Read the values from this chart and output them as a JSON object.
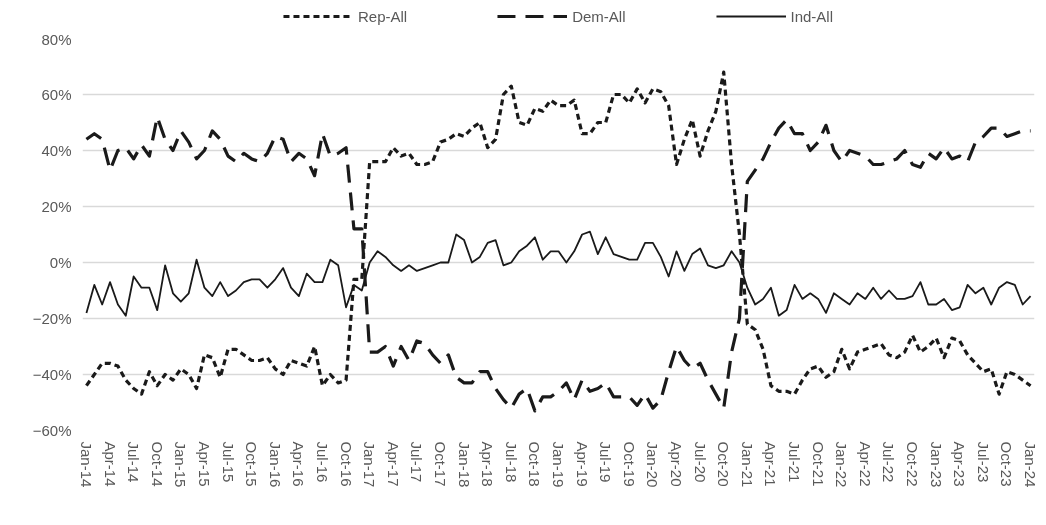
{
  "chart_data": {
    "type": "line",
    "categories": [
      "Jan-14",
      null,
      null,
      "Apr-14",
      null,
      null,
      "Jul-14",
      null,
      null,
      "Oct-14",
      null,
      null,
      "Jan-15",
      null,
      null,
      "Apr-15",
      null,
      null,
      "Jul-15",
      null,
      null,
      "Oct-15",
      null,
      null,
      "Jan-16",
      null,
      null,
      "Apr-16",
      null,
      null,
      "Jul-16",
      null,
      null,
      "Oct-16",
      null,
      null,
      "Jan-17",
      null,
      null,
      "Apr-17",
      null,
      null,
      "Jul-17",
      null,
      null,
      "Oct-17",
      null,
      null,
      "Jan-18",
      null,
      null,
      "Apr-18",
      null,
      null,
      "Jul-18",
      null,
      null,
      "Oct-18",
      null,
      null,
      "Jan-19",
      null,
      null,
      "Apr-19",
      null,
      null,
      "Jul-19",
      null,
      null,
      "Oct-19",
      null,
      null,
      "Jan-20",
      null,
      null,
      "Apr-20",
      null,
      null,
      "Jul-20",
      null,
      null,
      "Oct-20",
      null,
      null,
      "Jan-21",
      null,
      null,
      "Apr-21",
      null,
      null,
      "Jul-21",
      null,
      null,
      "Oct-21",
      null,
      null,
      "Jan-22",
      null,
      null,
      "Apr-22",
      null,
      null,
      "Jul-22",
      null,
      null,
      "Oct-22",
      null,
      null,
      "Jan-23",
      null,
      null,
      "Apr-23",
      null,
      null,
      "Jul-23",
      null,
      null,
      "Oct-23",
      null,
      null,
      "Jan-24"
    ],
    "series": [
      {
        "name": "Rep-All",
        "color": "#1a1a1a",
        "line_style": "dotted",
        "values": [
          -44,
          -40,
          -36,
          -36,
          -37,
          -42,
          -45,
          -47,
          -39,
          -44,
          -40,
          -42,
          -38,
          -40,
          -45,
          -33,
          -34,
          -41,
          -31,
          -31,
          -33,
          -35,
          -35,
          -34,
          -38,
          -40,
          -35,
          -36,
          -37,
          -30,
          -44,
          -40,
          -43,
          -42,
          -6,
          -6,
          36,
          36,
          36,
          41,
          38,
          39,
          35,
          35,
          36,
          43,
          44,
          46,
          45,
          48,
          50,
          41,
          44,
          60,
          63,
          50,
          49,
          55,
          54,
          58,
          56,
          56,
          58,
          46,
          46,
          50,
          50,
          60,
          60,
          57,
          62,
          57,
          62,
          61,
          56,
          35,
          44,
          51,
          38,
          47,
          54,
          68,
          35,
          10,
          -22,
          -24,
          -31,
          -44,
          -46,
          -46,
          -47,
          -42,
          -38,
          -37,
          -41,
          -39,
          -31,
          -38,
          -32,
          -31,
          -30,
          -29,
          -33,
          -34,
          -32,
          -26,
          -32,
          -30,
          -27,
          -34,
          -27,
          -28,
          -33,
          -36,
          -39,
          -38,
          -47,
          -39,
          -40,
          -42,
          -44
        ]
      },
      {
        "name": "Dem-All",
        "color": "#1a1a1a",
        "line_style": "dashed",
        "values": [
          44,
          46,
          44,
          33,
          40,
          41,
          37,
          42,
          38,
          52,
          44,
          40,
          47,
          43,
          37,
          40,
          47,
          44,
          38,
          36,
          39,
          37,
          36,
          39,
          45,
          44,
          36,
          39,
          37,
          31,
          46,
          38,
          39,
          41,
          12,
          12,
          -32,
          -32,
          -30,
          -37,
          -30,
          -35,
          -28,
          -29,
          -33,
          -36,
          -33,
          -41,
          -43,
          -43,
          -39,
          -39,
          -45,
          -49,
          -52,
          -47,
          -45,
          -53,
          -48,
          -48,
          -46,
          -43,
          -49,
          -42,
          -46,
          -45,
          -43,
          -48,
          -48,
          -48,
          -51,
          -47,
          -52,
          -49,
          -39,
          -30,
          -35,
          -38,
          -36,
          -42,
          -47,
          -52,
          -32,
          -20,
          29,
          33,
          37,
          43,
          48,
          51,
          46,
          46,
          40,
          43,
          49,
          40,
          36,
          40,
          39,
          38,
          35,
          35,
          36,
          37,
          40,
          35,
          34,
          39,
          37,
          41,
          37,
          38,
          36,
          43,
          45,
          48,
          48,
          45,
          46,
          47,
          47
        ]
      },
      {
        "name": "Ind-All",
        "color": "#1a1a1a",
        "line_style": "solid",
        "values": [
          -18,
          -8,
          -15,
          -7,
          -15,
          -19,
          -5,
          -9,
          -9,
          -17,
          -1,
          -11,
          -14,
          -11,
          1,
          -9,
          -12,
          -7,
          -12,
          -10,
          -7,
          -6,
          -6,
          -9,
          -6,
          -2,
          -9,
          -12,
          -4,
          -7,
          -7,
          1,
          -1,
          -16,
          -8,
          -10,
          0,
          4,
          2,
          -1,
          -3,
          -1,
          -3,
          -2,
          -1,
          0,
          0,
          10,
          8,
          0,
          2,
          7,
          8,
          -1,
          0,
          4,
          6,
          9,
          1,
          4,
          4,
          0,
          4,
          10,
          11,
          3,
          9,
          3,
          2,
          1,
          1,
          7,
          7,
          2,
          -5,
          4,
          -3,
          3,
          5,
          -1,
          -2,
          -1,
          4,
          0,
          -9,
          -15,
          -13,
          -9,
          -19,
          -17,
          -8,
          -13,
          -11,
          -13,
          -18,
          -11,
          -13,
          -15,
          -11,
          -13,
          -9,
          -13,
          -10,
          -13,
          -13,
          -12,
          -7,
          -15,
          -15,
          -13,
          -17,
          -16,
          -8,
          -11,
          -9,
          -15,
          -9,
          -7,
          -8,
          -15,
          -12
        ]
      }
    ],
    "ylim": [
      -60,
      80
    ],
    "yticks": [
      {
        "value": -60,
        "label": "−60%"
      },
      {
        "value": -40,
        "label": "−40%"
      },
      {
        "value": -20,
        "label": "−20%"
      },
      {
        "value": 0,
        "label": "0%"
      },
      {
        "value": 20,
        "label": "20%"
      },
      {
        "value": 40,
        "label": "40%"
      },
      {
        "value": 60,
        "label": "60%"
      },
      {
        "value": 80,
        "label": "80%"
      }
    ],
    "grid": "y",
    "legend": "top"
  }
}
